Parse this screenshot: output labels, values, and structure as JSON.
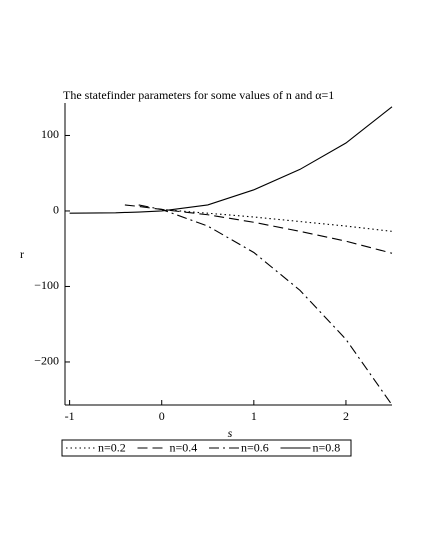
{
  "chart_data": {
    "type": "line",
    "title": "The statefinder parameters for some values of n and α=1",
    "x_label": "s",
    "y_label": "r",
    "x": [
      -1,
      -0.5,
      -0.4,
      -0.25,
      0,
      0.5,
      1,
      1.5,
      2,
      2.5
    ],
    "series": [
      {
        "name": "n=0.2",
        "color": "#000000",
        "style": "dotted",
        "values": [
          null,
          null,
          null,
          null,
          2,
          -3,
          -8,
          -14,
          -20,
          -27
        ]
      },
      {
        "name": "n=0.4",
        "color": "#000000",
        "style": "dashed",
        "values": [
          null,
          null,
          8,
          6,
          2,
          -5,
          -15,
          -27,
          -40,
          -56
        ]
      },
      {
        "name": "n=0.6",
        "color": "#000000",
        "style": "dashdot",
        "values": [
          null,
          null,
          null,
          8,
          2,
          -20,
          -55,
          -105,
          -170,
          -257
        ]
      },
      {
        "name": "n=0.8",
        "color": "#000000",
        "style": "solid",
        "values": [
          -3,
          -2.5,
          -2,
          -1.5,
          0,
          8,
          28,
          55,
          90,
          138
        ]
      }
    ],
    "xlim": [
      -1.05,
      2.5
    ],
    "ylim": [
      -257,
      143
    ],
    "xticks": [
      -1,
      0,
      1,
      2
    ],
    "yticks": [
      100,
      0,
      {
        "value": -100,
        "label": "−100"
      },
      {
        "value": -200,
        "label": "−200"
      }
    ],
    "legend": "bottom"
  }
}
